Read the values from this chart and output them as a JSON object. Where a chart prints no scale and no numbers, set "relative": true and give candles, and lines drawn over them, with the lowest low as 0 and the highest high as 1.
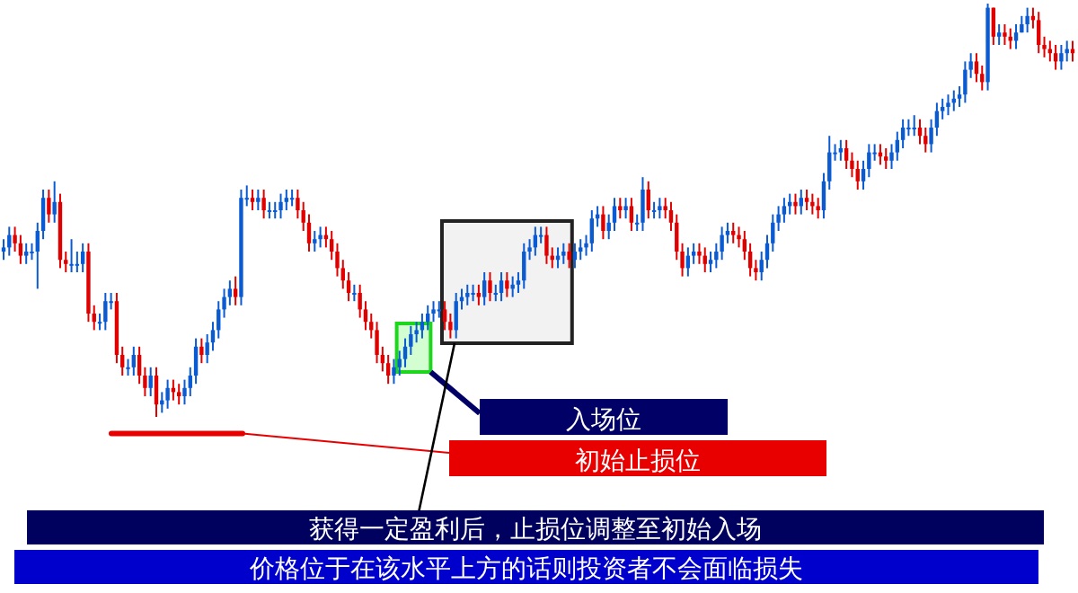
{
  "chart_data": {
    "type": "candlestick",
    "relative": true,
    "categories": [
      null,
      null,
      null,
      null,
      null,
      null,
      null,
      null,
      null,
      null,
      null,
      null,
      null,
      null,
      null,
      null,
      null,
      null,
      null,
      null,
      null,
      null,
      null,
      null,
      null,
      null,
      null,
      null,
      null,
      null,
      null,
      null,
      null,
      null,
      null,
      null,
      null,
      null,
      null,
      null,
      null,
      null,
      null,
      null,
      null,
      null,
      null,
      null,
      null,
      null,
      null,
      null,
      null,
      null,
      null,
      null,
      null,
      null,
      null,
      null,
      null,
      null,
      null,
      null,
      null,
      null,
      null,
      null,
      null,
      null,
      null,
      null,
      null,
      null,
      null,
      null,
      null,
      null,
      null,
      null,
      null,
      null,
      null,
      null,
      null,
      null,
      null,
      null,
      null,
      null,
      null,
      null,
      null,
      null,
      null,
      null,
      null,
      null,
      null,
      null,
      null,
      null,
      null,
      null,
      null,
      null,
      null,
      null,
      null,
      null,
      null,
      null,
      null,
      null,
      null,
      null,
      null,
      null,
      null,
      null,
      null,
      null,
      null,
      null,
      null,
      null,
      null,
      null,
      null,
      null,
      null,
      null,
      null,
      null,
      null,
      null,
      null,
      null,
      null,
      null,
      null,
      null,
      null,
      null,
      null,
      null,
      null,
      null,
      null,
      null,
      null,
      null,
      null,
      null,
      null,
      null,
      null,
      null,
      null,
      null,
      null,
      null,
      null,
      null,
      null,
      null,
      null,
      null,
      null,
      null,
      null,
      null,
      null,
      null,
      null,
      null,
      null,
      null,
      null,
      null,
      null,
      null,
      null,
      null,
      null,
      null,
      null,
      null,
      null,
      null
    ],
    "ohlc": [
      [
        0.4,
        0.43,
        0.38,
        0.41
      ],
      [
        0.41,
        0.46,
        0.39,
        0.44
      ],
      [
        0.44,
        0.46,
        0.4,
        0.42
      ],
      [
        0.42,
        0.44,
        0.37,
        0.39
      ],
      [
        0.39,
        0.42,
        0.37,
        0.4
      ],
      [
        0.4,
        0.42,
        0.38,
        0.4
      ],
      [
        0.4,
        0.47,
        0.31,
        0.45
      ],
      [
        0.45,
        0.55,
        0.43,
        0.53
      ],
      [
        0.53,
        0.55,
        0.47,
        0.49
      ],
      [
        0.49,
        0.57,
        0.47,
        0.52
      ],
      [
        0.52,
        0.54,
        0.36,
        0.38
      ],
      [
        0.38,
        0.4,
        0.35,
        0.37
      ],
      [
        0.37,
        0.43,
        0.35,
        0.37
      ],
      [
        0.37,
        0.4,
        0.35,
        0.37
      ],
      [
        0.37,
        0.42,
        0.35,
        0.4
      ],
      [
        0.4,
        0.42,
        0.23,
        0.25
      ],
      [
        0.25,
        0.27,
        0.21,
        0.23
      ],
      [
        0.23,
        0.25,
        0.21,
        0.23
      ],
      [
        0.23,
        0.3,
        0.21,
        0.28
      ],
      [
        0.28,
        0.3,
        0.26,
        0.28
      ],
      [
        0.28,
        0.3,
        0.13,
        0.15
      ],
      [
        0.15,
        0.17,
        0.1,
        0.12
      ],
      [
        0.12,
        0.14,
        0.1,
        0.12
      ],
      [
        0.12,
        0.17,
        0.1,
        0.15
      ],
      [
        0.15,
        0.17,
        0.08,
        0.1
      ],
      [
        0.1,
        0.12,
        0.05,
        0.07
      ],
      [
        0.07,
        0.12,
        0.05,
        0.1
      ],
      [
        0.1,
        0.12,
        0.0,
        0.03
      ],
      [
        0.03,
        0.06,
        0.01,
        0.04
      ],
      [
        0.04,
        0.09,
        0.02,
        0.07
      ],
      [
        0.07,
        0.09,
        0.04,
        0.06
      ],
      [
        0.06,
        0.08,
        0.03,
        0.05
      ],
      [
        0.05,
        0.09,
        0.03,
        0.07
      ],
      [
        0.07,
        0.12,
        0.05,
        0.1
      ],
      [
        0.1,
        0.19,
        0.08,
        0.17
      ],
      [
        0.17,
        0.19,
        0.13,
        0.15
      ],
      [
        0.15,
        0.2,
        0.13,
        0.18
      ],
      [
        0.18,
        0.23,
        0.16,
        0.21
      ],
      [
        0.21,
        0.28,
        0.19,
        0.26
      ],
      [
        0.26,
        0.31,
        0.24,
        0.29
      ],
      [
        0.29,
        0.33,
        0.27,
        0.31
      ],
      [
        0.31,
        0.34,
        0.27,
        0.29
      ],
      [
        0.29,
        0.55,
        0.27,
        0.53
      ],
      [
        0.53,
        0.56,
        0.51,
        0.53
      ],
      [
        0.53,
        0.55,
        0.5,
        0.52
      ],
      [
        0.52,
        0.55,
        0.5,
        0.53
      ],
      [
        0.53,
        0.55,
        0.48,
        0.5
      ],
      [
        0.5,
        0.52,
        0.48,
        0.5
      ],
      [
        0.5,
        0.52,
        0.48,
        0.5
      ],
      [
        0.5,
        0.54,
        0.48,
        0.52
      ],
      [
        0.52,
        0.55,
        0.5,
        0.53
      ],
      [
        0.53,
        0.55,
        0.51,
        0.53
      ],
      [
        0.53,
        0.55,
        0.48,
        0.5
      ],
      [
        0.5,
        0.52,
        0.45,
        0.47
      ],
      [
        0.47,
        0.49,
        0.4,
        0.42
      ],
      [
        0.42,
        0.45,
        0.4,
        0.43
      ],
      [
        0.43,
        0.46,
        0.41,
        0.44
      ],
      [
        0.44,
        0.46,
        0.41,
        0.43
      ],
      [
        0.43,
        0.45,
        0.38,
        0.4
      ],
      [
        0.4,
        0.42,
        0.34,
        0.36
      ],
      [
        0.36,
        0.38,
        0.31,
        0.33
      ],
      [
        0.33,
        0.35,
        0.28,
        0.3
      ],
      [
        0.3,
        0.32,
        0.28,
        0.3
      ],
      [
        0.3,
        0.32,
        0.24,
        0.26
      ],
      [
        0.26,
        0.28,
        0.21,
        0.23
      ],
      [
        0.23,
        0.25,
        0.19,
        0.21
      ],
      [
        0.21,
        0.23,
        0.13,
        0.15
      ],
      [
        0.15,
        0.17,
        0.11,
        0.13
      ],
      [
        0.13,
        0.15,
        0.08,
        0.1
      ],
      [
        0.1,
        0.14,
        0.08,
        0.12
      ],
      [
        0.12,
        0.16,
        0.1,
        0.14
      ],
      [
        0.14,
        0.19,
        0.12,
        0.17
      ],
      [
        0.17,
        0.22,
        0.15,
        0.2
      ],
      [
        0.2,
        0.23,
        0.18,
        0.21
      ],
      [
        0.21,
        0.25,
        0.19,
        0.23
      ],
      [
        0.23,
        0.27,
        0.21,
        0.25
      ],
      [
        0.25,
        0.28,
        0.23,
        0.26
      ],
      [
        0.26,
        0.28,
        0.24,
        0.26
      ],
      [
        0.26,
        0.28,
        0.21,
        0.23
      ],
      [
        0.23,
        0.25,
        0.19,
        0.21
      ],
      [
        0.21,
        0.3,
        0.19,
        0.28
      ],
      [
        0.28,
        0.31,
        0.26,
        0.29
      ],
      [
        0.29,
        0.32,
        0.27,
        0.3
      ],
      [
        0.3,
        0.32,
        0.28,
        0.3
      ],
      [
        0.3,
        0.32,
        0.27,
        0.29
      ],
      [
        0.29,
        0.35,
        0.27,
        0.33
      ],
      [
        0.33,
        0.35,
        0.28,
        0.3
      ],
      [
        0.3,
        0.32,
        0.28,
        0.3
      ],
      [
        0.3,
        0.35,
        0.28,
        0.33
      ],
      [
        0.33,
        0.35,
        0.29,
        0.31
      ],
      [
        0.31,
        0.34,
        0.29,
        0.32
      ],
      [
        0.32,
        0.35,
        0.3,
        0.33
      ],
      [
        0.33,
        0.42,
        0.31,
        0.4
      ],
      [
        0.4,
        0.43,
        0.38,
        0.41
      ],
      [
        0.41,
        0.46,
        0.39,
        0.44
      ],
      [
        0.44,
        0.46,
        0.42,
        0.44
      ],
      [
        0.44,
        0.46,
        0.37,
        0.39
      ],
      [
        0.39,
        0.41,
        0.36,
        0.38
      ],
      [
        0.38,
        0.41,
        0.36,
        0.39
      ],
      [
        0.39,
        0.42,
        0.37,
        0.4
      ],
      [
        0.4,
        0.42,
        0.36,
        0.38
      ],
      [
        0.38,
        0.42,
        0.36,
        0.4
      ],
      [
        0.4,
        0.43,
        0.38,
        0.41
      ],
      [
        0.41,
        0.44,
        0.39,
        0.42
      ],
      [
        0.42,
        0.5,
        0.4,
        0.48
      ],
      [
        0.48,
        0.51,
        0.46,
        0.49
      ],
      [
        0.49,
        0.51,
        0.43,
        0.45
      ],
      [
        0.45,
        0.49,
        0.43,
        0.47
      ],
      [
        0.47,
        0.53,
        0.45,
        0.51
      ],
      [
        0.51,
        0.53,
        0.48,
        0.5
      ],
      [
        0.5,
        0.53,
        0.48,
        0.51
      ],
      [
        0.51,
        0.53,
        0.45,
        0.47
      ],
      [
        0.47,
        0.49,
        0.45,
        0.47
      ],
      [
        0.47,
        0.58,
        0.45,
        0.55
      ],
      [
        0.55,
        0.57,
        0.48,
        0.5
      ],
      [
        0.5,
        0.52,
        0.48,
        0.5
      ],
      [
        0.5,
        0.53,
        0.48,
        0.51
      ],
      [
        0.51,
        0.53,
        0.48,
        0.5
      ],
      [
        0.5,
        0.52,
        0.45,
        0.47
      ],
      [
        0.47,
        0.49,
        0.38,
        0.4
      ],
      [
        0.4,
        0.42,
        0.34,
        0.36
      ],
      [
        0.36,
        0.41,
        0.34,
        0.39
      ],
      [
        0.39,
        0.42,
        0.37,
        0.4
      ],
      [
        0.4,
        0.42,
        0.37,
        0.39
      ],
      [
        0.39,
        0.41,
        0.35,
        0.37
      ],
      [
        0.37,
        0.4,
        0.35,
        0.38
      ],
      [
        0.38,
        0.42,
        0.36,
        0.4
      ],
      [
        0.4,
        0.46,
        0.38,
        0.44
      ],
      [
        0.44,
        0.47,
        0.42,
        0.45
      ],
      [
        0.45,
        0.47,
        0.42,
        0.44
      ],
      [
        0.44,
        0.46,
        0.41,
        0.43
      ],
      [
        0.43,
        0.45,
        0.38,
        0.4
      ],
      [
        0.4,
        0.42,
        0.34,
        0.36
      ],
      [
        0.36,
        0.38,
        0.33,
        0.35
      ],
      [
        0.35,
        0.4,
        0.33,
        0.38
      ],
      [
        0.38,
        0.44,
        0.36,
        0.42
      ],
      [
        0.42,
        0.49,
        0.4,
        0.47
      ],
      [
        0.47,
        0.51,
        0.45,
        0.49
      ],
      [
        0.49,
        0.53,
        0.47,
        0.51
      ],
      [
        0.51,
        0.54,
        0.49,
        0.52
      ],
      [
        0.52,
        0.54,
        0.49,
        0.51
      ],
      [
        0.51,
        0.55,
        0.49,
        0.53
      ],
      [
        0.53,
        0.55,
        0.5,
        0.52
      ],
      [
        0.52,
        0.54,
        0.49,
        0.51
      ],
      [
        0.51,
        0.53,
        0.48,
        0.5
      ],
      [
        0.5,
        0.59,
        0.48,
        0.57
      ],
      [
        0.57,
        0.68,
        0.55,
        0.64
      ],
      [
        0.64,
        0.66,
        0.62,
        0.64
      ],
      [
        0.64,
        0.67,
        0.62,
        0.65
      ],
      [
        0.65,
        0.67,
        0.6,
        0.62
      ],
      [
        0.62,
        0.64,
        0.58,
        0.6
      ],
      [
        0.6,
        0.62,
        0.55,
        0.57
      ],
      [
        0.57,
        0.62,
        0.55,
        0.6
      ],
      [
        0.6,
        0.66,
        0.58,
        0.64
      ],
      [
        0.64,
        0.66,
        0.62,
        0.64
      ],
      [
        0.64,
        0.66,
        0.61,
        0.63
      ],
      [
        0.63,
        0.65,
        0.6,
        0.62
      ],
      [
        0.62,
        0.66,
        0.6,
        0.64
      ],
      [
        0.64,
        0.69,
        0.62,
        0.67
      ],
      [
        0.67,
        0.72,
        0.65,
        0.7
      ],
      [
        0.7,
        0.72,
        0.68,
        0.7
      ],
      [
        0.7,
        0.73,
        0.68,
        0.7
      ],
      [
        0.7,
        0.72,
        0.66,
        0.68
      ],
      [
        0.68,
        0.7,
        0.64,
        0.66
      ],
      [
        0.66,
        0.72,
        0.64,
        0.7
      ],
      [
        0.7,
        0.76,
        0.68,
        0.74
      ],
      [
        0.74,
        0.77,
        0.72,
        0.75
      ],
      [
        0.75,
        0.78,
        0.73,
        0.76
      ],
      [
        0.76,
        0.79,
        0.74,
        0.77
      ],
      [
        0.77,
        0.8,
        0.75,
        0.78
      ],
      [
        0.78,
        0.86,
        0.76,
        0.84
      ],
      [
        0.84,
        0.88,
        0.82,
        0.86
      ],
      [
        0.86,
        0.88,
        0.81,
        0.83
      ],
      [
        0.83,
        0.85,
        0.79,
        0.81
      ],
      [
        0.81,
        1.0,
        0.79,
        0.99
      ],
      [
        0.99,
        0.99,
        0.9,
        0.92
      ],
      [
        0.92,
        0.95,
        0.9,
        0.93
      ],
      [
        0.93,
        0.95,
        0.9,
        0.92
      ],
      [
        0.92,
        0.94,
        0.89,
        0.91
      ],
      [
        0.91,
        0.95,
        0.89,
        0.93
      ],
      [
        0.93,
        0.97,
        0.93,
        0.95
      ],
      [
        0.95,
        0.99,
        0.93,
        0.97
      ],
      [
        0.97,
        0.99,
        0.94,
        0.96
      ],
      [
        0.96,
        0.98,
        0.88,
        0.9
      ],
      [
        0.9,
        0.92,
        0.87,
        0.89
      ],
      [
        0.89,
        0.91,
        0.86,
        0.88
      ],
      [
        0.88,
        0.9,
        0.84,
        0.86
      ],
      [
        0.86,
        0.9,
        0.84,
        0.88
      ],
      [
        0.88,
        0.91,
        0.86,
        0.89
      ],
      [
        0.89,
        0.91,
        0.86,
        0.88
      ]
    ],
    "ref_lines": [
      {
        "axis": "y",
        "value": -0.04,
        "color": "#e80000"
      }
    ],
    "annotations": [
      "入场位",
      "初始止损位",
      "获得一定盈利后，止损位调整至初始入场",
      "价格位于在该水平上方的话则投资者不会面临损失"
    ]
  }
}
